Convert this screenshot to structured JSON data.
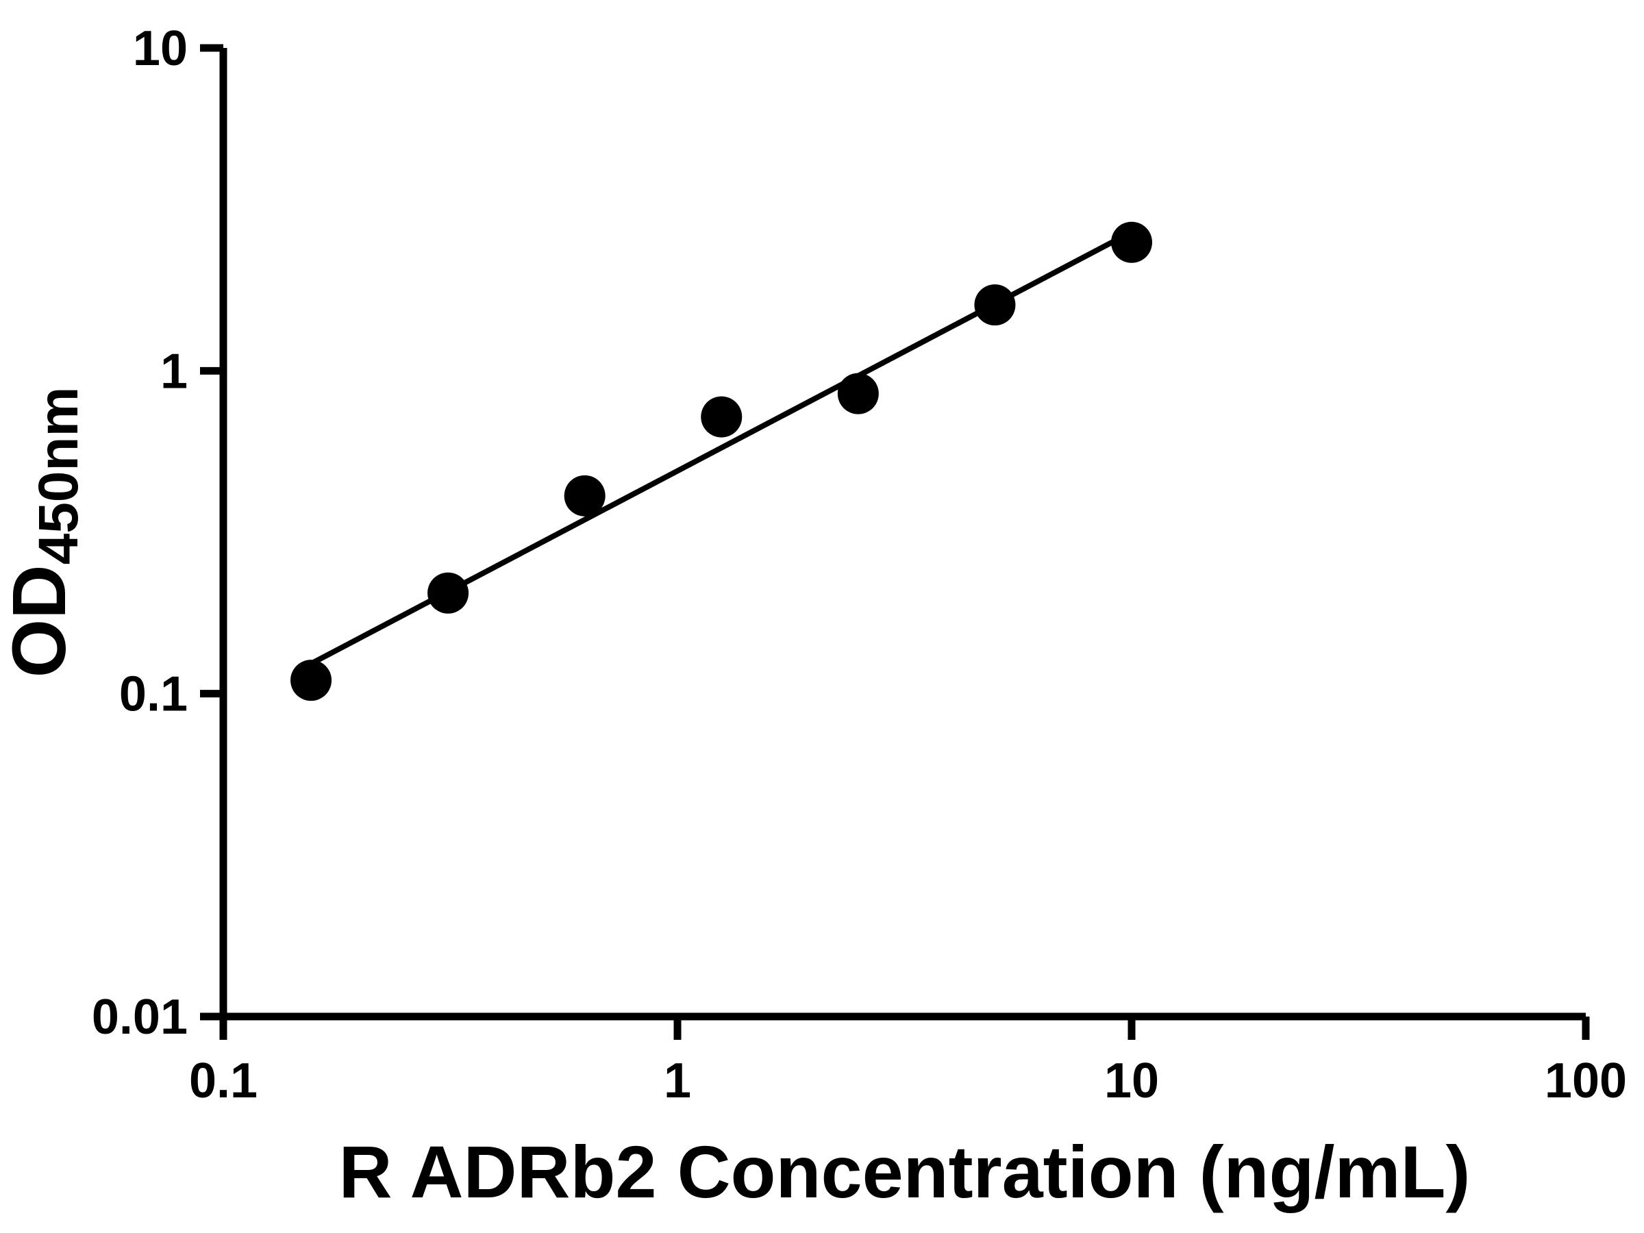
{
  "chart_data": {
    "type": "scatter",
    "title": "",
    "xlabel": "R ADRb2 Concentration (ng/mL)",
    "ylabel_main": "OD",
    "ylabel_sub": "450nm",
    "x_scale": "log",
    "y_scale": "log",
    "xlim": [
      0.1,
      100
    ],
    "ylim": [
      0.01,
      10
    ],
    "grid": false,
    "legend": "none",
    "x_ticks": [
      {
        "value": 0.1,
        "label": "0.1"
      },
      {
        "value": 1,
        "label": "1"
      },
      {
        "value": 10,
        "label": "10"
      },
      {
        "value": 100,
        "label": "100"
      }
    ],
    "y_ticks": [
      {
        "value": 0.01,
        "label": "0.01"
      },
      {
        "value": 0.1,
        "label": "0.1"
      },
      {
        "value": 1,
        "label": "1"
      },
      {
        "value": 10,
        "label": "10"
      }
    ],
    "points": [
      {
        "x": 0.156,
        "y": 0.11
      },
      {
        "x": 0.3125,
        "y": 0.205
      },
      {
        "x": 0.625,
        "y": 0.41
      },
      {
        "x": 1.25,
        "y": 0.72
      },
      {
        "x": 2.5,
        "y": 0.85
      },
      {
        "x": 5,
        "y": 1.6
      },
      {
        "x": 10,
        "y": 2.5
      }
    ],
    "fit_line": {
      "model": "power",
      "slope": 0.74,
      "intercept": -0.31,
      "x_start": 0.15,
      "x_end": 10
    },
    "colors": {
      "marker": "#000000",
      "line": "#000000",
      "axis": "#000000",
      "background": "#ffffff"
    }
  }
}
